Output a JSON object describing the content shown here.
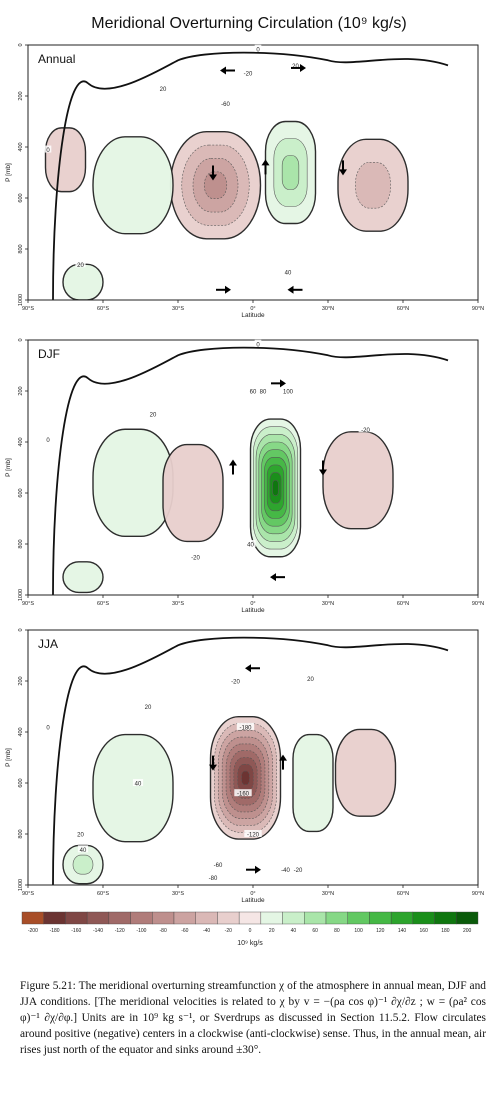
{
  "figure": {
    "title": "Meridional Overturning Circulation (10⁹ kg/s)",
    "caption": {
      "figure_label": "Figure 5.21:",
      "text": "The meridional overturning streamfunction χ of the atmosphere in annual mean, DJF and JJA conditions. [The meridional velocities is related to χ by v = −(ρa cos φ)⁻¹ ∂χ/∂z ;  w = (ρa² cos φ)⁻¹ ∂χ/∂φ.] Units are in 10⁹ kg s⁻¹, or Sverdrups as discussed in Section 11.5.2. Flow circulates around positive (negative) centers in a clockwise (anti-clockwise) sense. Thus, in the annual mean, air rises just north of the equator and sinks around ±30°."
    }
  },
  "chart_data": [
    {
      "type": "heatmap",
      "panel_label": "Annual",
      "xlabel": "Latitude",
      "ylabel": "P [mb]",
      "xlim": [
        -90,
        90
      ],
      "ylim": [
        1000,
        0
      ],
      "x_ticks": [
        "90°S",
        "60°S",
        "30°S",
        "0°",
        "30°N",
        "60°N",
        "90°N"
      ],
      "y_ticks": [
        "0",
        "200",
        "400",
        "600",
        "800",
        "1000"
      ],
      "cells": [
        {
          "lat": -15,
          "p": 550,
          "value": -80,
          "w": 18,
          "h": 420
        },
        {
          "lat": 15,
          "p": 500,
          "value": 60,
          "w": 10,
          "h": 400
        },
        {
          "lat": -48,
          "p": 550,
          "value": 20,
          "w": 16,
          "h": 380
        },
        {
          "lat": 48,
          "p": 550,
          "value": -40,
          "w": 14,
          "h": 360
        },
        {
          "lat": -68,
          "p": 930,
          "value": 20,
          "w": 8,
          "h": 140
        },
        {
          "lat": -75,
          "p": 450,
          "value": -10,
          "w": 8,
          "h": 250
        }
      ],
      "contour_labels": [
        {
          "lat": -11,
          "p": 230,
          "text": "-60"
        },
        {
          "lat": -2,
          "p": 110,
          "text": "-20"
        },
        {
          "lat": 17,
          "p": 80,
          "text": "20"
        },
        {
          "lat": -36,
          "p": 170,
          "text": "20"
        },
        {
          "lat": 14,
          "p": 890,
          "text": "40"
        },
        {
          "lat": -69,
          "p": 860,
          "text": "20"
        },
        {
          "lat": -82,
          "p": 410,
          "text": "0"
        },
        {
          "lat": 2,
          "p": 15,
          "text": "0"
        }
      ],
      "arrows": [
        {
          "lat": -10,
          "p": 100,
          "dir": "left"
        },
        {
          "lat": 18,
          "p": 90,
          "dir": "right"
        },
        {
          "lat": -16,
          "p": 500,
          "dir": "down"
        },
        {
          "lat": 5,
          "p": 480,
          "dir": "up"
        },
        {
          "lat": 36,
          "p": 480,
          "dir": "down"
        },
        {
          "lat": -12,
          "p": 960,
          "dir": "right"
        },
        {
          "lat": 17,
          "p": 960,
          "dir": "left"
        }
      ]
    },
    {
      "type": "heatmap",
      "panel_label": "DJF",
      "xlabel": "Latitude",
      "ylabel": "P [mb]",
      "xlim": [
        -90,
        90
      ],
      "ylim": [
        1000,
        0
      ],
      "x_ticks": [
        "90°S",
        "60°S",
        "30°S",
        "0°",
        "30°N",
        "60°N",
        "90°N"
      ],
      "y_ticks": [
        "0",
        "200",
        "400",
        "600",
        "800",
        "1000"
      ],
      "cells": [
        {
          "lat": 9,
          "p": 580,
          "value": 180,
          "w": 10,
          "h": 540
        },
        {
          "lat": -48,
          "p": 560,
          "value": 20,
          "w": 16,
          "h": 420
        },
        {
          "lat": -24,
          "p": 600,
          "value": -20,
          "w": 12,
          "h": 380
        },
        {
          "lat": 42,
          "p": 550,
          "value": -20,
          "w": 14,
          "h": 380
        },
        {
          "lat": -68,
          "p": 930,
          "value": 20,
          "w": 8,
          "h": 120
        }
      ],
      "contour_labels": [
        {
          "lat": 0,
          "p": 200,
          "text": "60"
        },
        {
          "lat": 4,
          "p": 200,
          "text": "80"
        },
        {
          "lat": 14,
          "p": 200,
          "text": "100"
        },
        {
          "lat": -40,
          "p": 290,
          "text": "20"
        },
        {
          "lat": 45,
          "p": 350,
          "text": "-20"
        },
        {
          "lat": -1,
          "p": 800,
          "text": "40"
        },
        {
          "lat": -23,
          "p": 850,
          "text": "-20"
        },
        {
          "lat": 2,
          "p": 15,
          "text": "0"
        },
        {
          "lat": -82,
          "p": 390,
          "text": "0"
        }
      ],
      "arrows": [
        {
          "lat": 10,
          "p": 170,
          "dir": "right"
        },
        {
          "lat": -8,
          "p": 500,
          "dir": "up"
        },
        {
          "lat": 28,
          "p": 500,
          "dir": "down"
        },
        {
          "lat": 10,
          "p": 930,
          "dir": "left"
        }
      ]
    },
    {
      "type": "heatmap",
      "panel_label": "JJA",
      "xlabel": "Latitude",
      "ylabel": "P [mb]",
      "xlim": [
        -90,
        90
      ],
      "ylim": [
        1000,
        0
      ],
      "x_ticks": [
        "90°S",
        "60°S",
        "30°S",
        "0°",
        "30°N",
        "60°N",
        "90°N"
      ],
      "y_ticks": [
        "0",
        "200",
        "400",
        "600",
        "800",
        "1000"
      ],
      "cells": [
        {
          "lat": -3,
          "p": 580,
          "value": -180,
          "w": 14,
          "h": 480
        },
        {
          "lat": -48,
          "p": 620,
          "value": 20,
          "w": 16,
          "h": 420
        },
        {
          "lat": 24,
          "p": 600,
          "value": 20,
          "w": 8,
          "h": 380
        },
        {
          "lat": 45,
          "p": 560,
          "value": -10,
          "w": 12,
          "h": 340
        },
        {
          "lat": -68,
          "p": 920,
          "value": 40,
          "w": 8,
          "h": 150
        }
      ],
      "contour_labels": [
        {
          "lat": -3,
          "p": 380,
          "text": "-180"
        },
        {
          "lat": -4,
          "p": 640,
          "text": "-160"
        },
        {
          "lat": 0,
          "p": 800,
          "text": "-120"
        },
        {
          "lat": -14,
          "p": 920,
          "text": "-60"
        },
        {
          "lat": -16,
          "p": 970,
          "text": "-80"
        },
        {
          "lat": 13,
          "p": 940,
          "text": "-40"
        },
        {
          "lat": 18,
          "p": 940,
          "text": "-20"
        },
        {
          "lat": -7,
          "p": 200,
          "text": "-20"
        },
        {
          "lat": 23,
          "p": 190,
          "text": "20"
        },
        {
          "lat": -42,
          "p": 300,
          "text": "20"
        },
        {
          "lat": -46,
          "p": 600,
          "text": "40"
        },
        {
          "lat": -69,
          "p": 800,
          "text": "20"
        },
        {
          "lat": -68,
          "p": 860,
          "text": "40"
        },
        {
          "lat": -82,
          "p": 380,
          "text": "0"
        }
      ],
      "arrows": [
        {
          "lat": 0,
          "p": 150,
          "dir": "left"
        },
        {
          "lat": -16,
          "p": 520,
          "dir": "down"
        },
        {
          "lat": 12,
          "p": 520,
          "dir": "up"
        },
        {
          "lat": 0,
          "p": 940,
          "dir": "right"
        }
      ]
    }
  ],
  "colorbar": {
    "label": "10⁹ kg/s",
    "ticks": [
      "-200",
      "-180",
      "-160",
      "-140",
      "-120",
      "-100",
      "-80",
      "-60",
      "-40",
      "-20",
      "0",
      "20",
      "40",
      "60",
      "80",
      "100",
      "120",
      "140",
      "160",
      "180",
      "200"
    ],
    "colors": [
      "#a84e28",
      "#6b3432",
      "#7f4745",
      "#8f5856",
      "#a06a68",
      "#b07c7a",
      "#be8f8d",
      "#cca3a1",
      "#dab8b6",
      "#e8cfcd",
      "#f5e6e5",
      "#e4f6e4",
      "#c9efc9",
      "#a9e5a9",
      "#86d886",
      "#62c862",
      "#45b845",
      "#2da42d",
      "#1a8e1a",
      "#0f760f",
      "#0a5a0a"
    ]
  }
}
